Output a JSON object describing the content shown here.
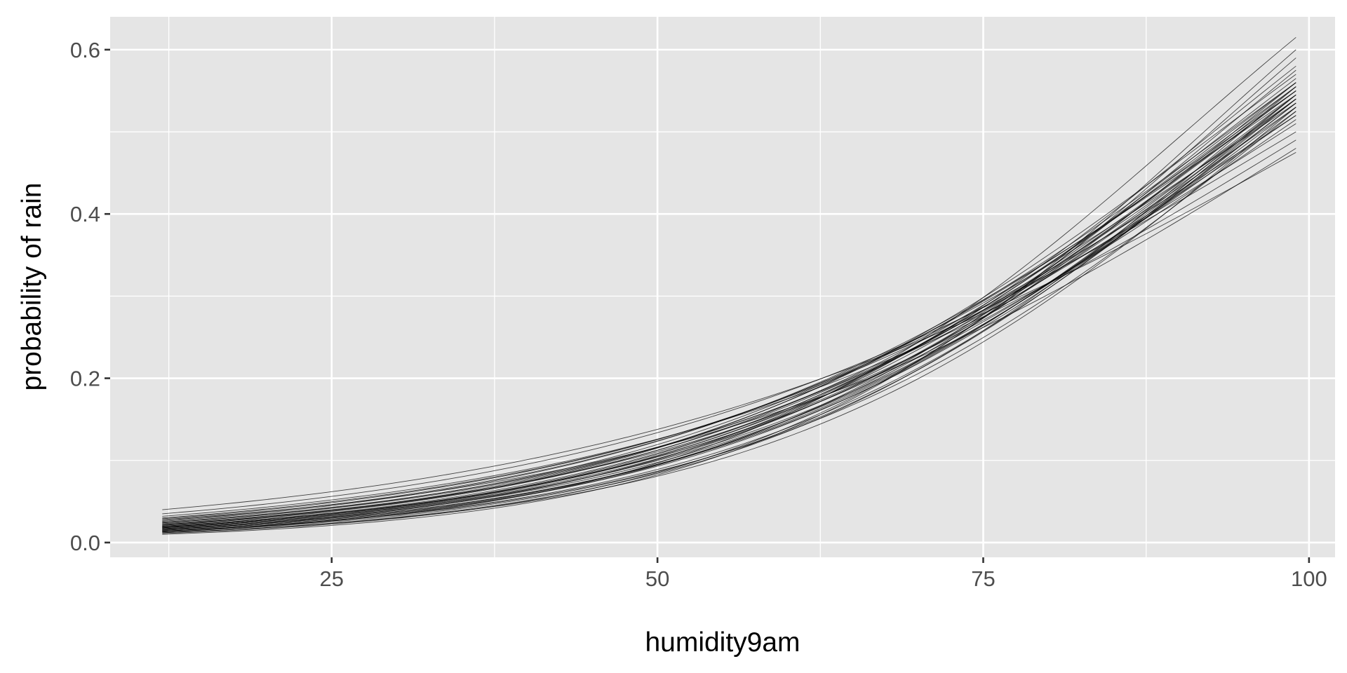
{
  "chart_data": {
    "type": "line",
    "xlabel": "humidity9am",
    "ylabel": "probability of rain",
    "xlim": [
      8,
      102
    ],
    "ylim": [
      -0.018,
      0.64
    ],
    "x_ticks": [
      25,
      50,
      75,
      100
    ],
    "x_tick_labels": [
      "25",
      "50",
      "75",
      "100"
    ],
    "y_ticks": [
      0.0,
      0.2,
      0.4,
      0.6
    ],
    "y_tick_labels": [
      "0.0",
      "0.2",
      "0.4",
      "0.6"
    ],
    "grid": true,
    "legend": "none",
    "x_range_of_curves": [
      12,
      99
    ],
    "curves": [
      {
        "p_at_12": 0.018,
        "p_at_99": 0.545
      },
      {
        "p_at_12": 0.016,
        "p_at_99": 0.535
      },
      {
        "p_at_12": 0.02,
        "p_at_99": 0.55
      },
      {
        "p_at_12": 0.014,
        "p_at_99": 0.54
      },
      {
        "p_at_12": 0.022,
        "p_at_99": 0.56
      },
      {
        "p_at_12": 0.012,
        "p_at_99": 0.53
      },
      {
        "p_at_12": 0.025,
        "p_at_99": 0.52
      },
      {
        "p_at_12": 0.017,
        "p_at_99": 0.555
      },
      {
        "p_at_12": 0.019,
        "p_at_99": 0.54
      },
      {
        "p_at_12": 0.015,
        "p_at_99": 0.545
      },
      {
        "p_at_12": 0.03,
        "p_at_99": 0.51
      },
      {
        "p_at_12": 0.028,
        "p_at_99": 0.48
      },
      {
        "p_at_12": 0.04,
        "p_at_99": 0.475
      },
      {
        "p_at_12": 0.035,
        "p_at_99": 0.5
      },
      {
        "p_at_12": 0.01,
        "p_at_99": 0.6
      },
      {
        "p_at_12": 0.013,
        "p_at_99": 0.615
      },
      {
        "p_at_12": 0.011,
        "p_at_99": 0.59
      },
      {
        "p_at_12": 0.016,
        "p_at_99": 0.58
      },
      {
        "p_at_12": 0.021,
        "p_at_99": 0.57
      },
      {
        "p_at_12": 0.018,
        "p_at_99": 0.565
      },
      {
        "p_at_12": 0.024,
        "p_at_99": 0.53
      },
      {
        "p_at_12": 0.026,
        "p_at_99": 0.545
      },
      {
        "p_at_12": 0.02,
        "p_at_99": 0.525
      },
      {
        "p_at_12": 0.023,
        "p_at_99": 0.515
      },
      {
        "p_at_12": 0.032,
        "p_at_99": 0.49
      },
      {
        "p_at_12": 0.014,
        "p_at_99": 0.575
      },
      {
        "p_at_12": 0.012,
        "p_at_99": 0.555
      },
      {
        "p_at_12": 0.017,
        "p_at_99": 0.535
      },
      {
        "p_at_12": 0.019,
        "p_at_99": 0.55
      },
      {
        "p_at_12": 0.015,
        "p_at_99": 0.56
      },
      {
        "p_at_12": 0.022,
        "p_at_99": 0.54
      },
      {
        "p_at_12": 0.027,
        "p_at_99": 0.535
      },
      {
        "p_at_12": 0.029,
        "p_at_99": 0.52
      },
      {
        "p_at_12": 0.013,
        "p_at_99": 0.545
      },
      {
        "p_at_12": 0.018,
        "p_at_99": 0.53
      },
      {
        "p_at_12": 0.021,
        "p_at_99": 0.555
      },
      {
        "p_at_12": 0.016,
        "p_at_99": 0.54
      },
      {
        "p_at_12": 0.024,
        "p_at_99": 0.55
      },
      {
        "p_at_12": 0.019,
        "p_at_99": 0.56
      },
      {
        "p_at_12": 0.014,
        "p_at_99": 0.525
      }
    ]
  }
}
